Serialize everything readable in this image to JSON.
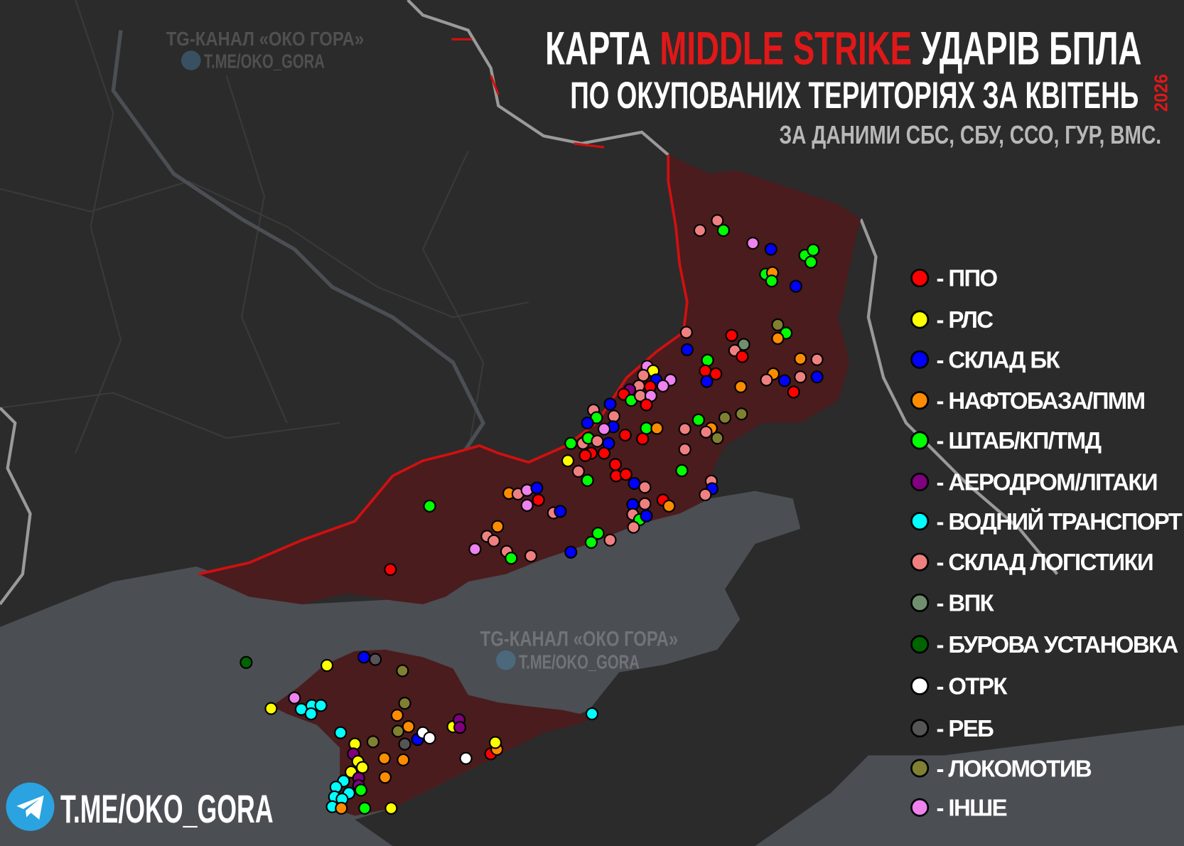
{
  "title": {
    "prefix": "КАРТА",
    "highlight": "MIDDLE STRIKE",
    "suffix": "УДАРІВ БПЛА",
    "line2": "ПО ОКУПОВАНИХ ТЕРИТОРІЯХ ЗА КВІТЕНЬ",
    "year": "2026",
    "source": "ЗА ДАНИМИ СБС, СБУ, ССО, ГУР, ВМС."
  },
  "watermarks": [
    {
      "channel": "TG-КАНАЛ «ОКО ГОРА»",
      "link": "T.ME/OKO_GORA"
    },
    {
      "channel": "TG-КАНАЛ «ОКО ГОРА»",
      "link": "T.ME/OKO_GORA"
    }
  ],
  "legend": [
    {
      "label": "- ППО",
      "color": "#ff0000"
    },
    {
      "label": "- РЛС",
      "color": "#ffff00"
    },
    {
      "label": "- СКЛАД БК",
      "color": "#0000ff"
    },
    {
      "label": "- НАФТОБАЗА/ПММ",
      "color": "#ff8c00"
    },
    {
      "label": "- ШТАБ/КП/ТМД",
      "color": "#00ff00"
    },
    {
      "label": "- АЕРОДРОМ/ЛІТАКИ",
      "color": "#800080"
    },
    {
      "label": "- ВОДНИЙ ТРАНСПОРТ",
      "color": "#00ffff"
    },
    {
      "label": "- СКЛАД ЛОГІСТИКИ",
      "color": "#f08080"
    },
    {
      "label": "- ВПК",
      "color": "#6f8f6f"
    },
    {
      "label": "- БУРОВА УСТАНОВКА",
      "color": "#006400"
    },
    {
      "label": "- ОТРК",
      "color": "#ffffff"
    },
    {
      "label": "- РЕБ",
      "color": "#555555"
    },
    {
      "label": "- ЛОКОМОТИВ",
      "color": "#808033"
    },
    {
      "label": "- ІНШЕ",
      "color": "#ee82ee"
    }
  ],
  "footer_link": "T.ME/OKO_GORA"
}
